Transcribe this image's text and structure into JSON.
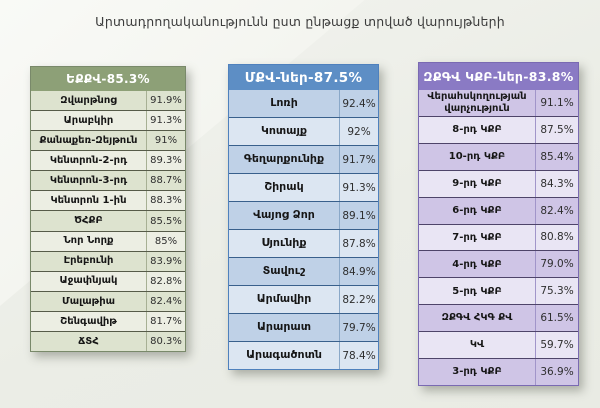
{
  "page": {
    "title": "Արտադրողականությունն ըստ ընթացք տրված վարույթների",
    "background": "#eef0ea"
  },
  "chart_data": [
    {
      "type": "table",
      "title": "ԵՔՔՎ-85.3%",
      "overall": 85.3,
      "categories": [
        "Զվարթնոց",
        "Արաբկիր",
        "Քանաքեռ-Զեյթուն",
        "Կենտրոն-2-րդ",
        "Կենտրոն-3-րդ",
        "Կենտրոն 1-ին",
        "ԾՀՔԲ",
        "Նոր Նորք",
        "Էրեբունի",
        "Աջափնյակ",
        "Մալաթիա",
        "Շենգավիթ",
        "ՃՏՀ"
      ],
      "values": [
        91.9,
        91.3,
        91,
        89.3,
        88.7,
        88.3,
        85.5,
        85,
        83.9,
        82.8,
        82.4,
        81.7,
        80.3
      ],
      "value_labels": [
        "91.9%",
        "91.3%",
        "91%",
        "89.3%",
        "88.7%",
        "88.3%",
        "85.5%",
        "85%",
        "83.9%",
        "82.8%",
        "82.4%",
        "81.7%",
        "80.3%"
      ],
      "theme": {
        "header_bg": "#8da077",
        "row_dark": "#dde3cf",
        "row_light": "#eceee3",
        "separator": "#565b49",
        "divider": "#a7b094",
        "outer": "#79896a"
      }
    },
    {
      "type": "table",
      "title": "ՄՔՎ-ներ-87.5%",
      "overall": 87.5,
      "categories": [
        "Լոռի",
        "Կոտայք",
        "Գեղարքունիք",
        "Շիրակ",
        "Վայոց Ձոր",
        "Սյունիք",
        "Տավուշ",
        "Արմավիր",
        "Արարատ",
        "Արագածոտն"
      ],
      "values": [
        92.4,
        92,
        91.7,
        91.3,
        89.1,
        87.8,
        84.9,
        82.2,
        79.7,
        78.4
      ],
      "value_labels": [
        "92.4%",
        "92%",
        "91.7%",
        "91.3%",
        "89.1%",
        "87.8%",
        "84.9%",
        "82.2%",
        "79.7%",
        "78.4%"
      ],
      "theme": {
        "header_bg": "#5d8ec5",
        "row_dark": "#bfd1e7",
        "row_light": "#dce6f2",
        "separator": "#39608c",
        "divider": "#8aa8c8",
        "outer": "#4f81bd"
      }
    },
    {
      "type": "table",
      "title": "ԶՔԳՎ ԿՔԲ-ներ-83.8%",
      "overall": 83.8,
      "categories": [
        "Վերահսկողության վարչություն",
        "8-րդ ԿՔԲ",
        "10-րդ ԿՔԲ",
        "9-րդ ԿՔԲ",
        "6-րդ ԿՔԲ",
        "7-րդ ԿՔԲ",
        "4-րդ ԿՔԲ",
        "5-րդ ԿՔԲ",
        "ԶՔԳՎ ՀԿԳ ՔՎ",
        "ԿՎ",
        "3-րդ ԿՔԲ"
      ],
      "values": [
        91.1,
        87.5,
        85.4,
        84.3,
        82.4,
        80.8,
        79.0,
        75.3,
        61.5,
        59.7,
        36.9
      ],
      "value_labels": [
        "91.1%",
        "87.5%",
        "85.4%",
        "84.3%",
        "82.4%",
        "80.8%",
        "79.0%",
        "75.3%",
        "61.5%",
        "59.7%",
        "36.9%"
      ],
      "theme": {
        "header_bg": "#8a7ac4",
        "row_dark": "#cfc5e6",
        "row_light": "#e9e5f4",
        "separator": "#4e4469",
        "divider": "#a195c9",
        "outer": "#7a6ab2"
      }
    }
  ]
}
